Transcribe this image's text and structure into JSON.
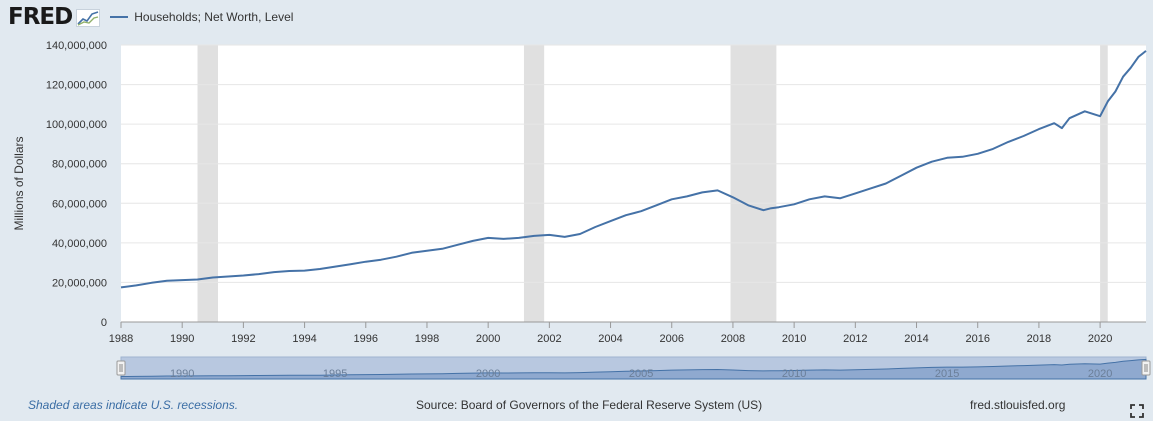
{
  "header": {
    "logo": "FRED",
    "logo_icon": "trend-graph-icon"
  },
  "footer": {
    "note": "Shaded areas indicate U.S. recessions.",
    "source": "Source: Board of Governors of the Federal Reserve System (US)",
    "site": "fred.stlouisfed.org",
    "fullscreen_icon": "fullscreen-icon"
  },
  "colors": {
    "series": "#4572a7",
    "recession": "#e0e0e0",
    "navigator_fill": "#b8c8e0",
    "background": "#e1e9f0"
  },
  "chart_data": {
    "type": "line",
    "ylabel": "Millions of Dollars",
    "xlabel": "",
    "xlim": [
      1988,
      2021.5
    ],
    "ylim": [
      0,
      140000000
    ],
    "x_ticks": [
      "1988",
      "1990",
      "1992",
      "1994",
      "1996",
      "1998",
      "2000",
      "2002",
      "2004",
      "2006",
      "2008",
      "2010",
      "2012",
      "2014",
      "2016",
      "2018",
      "2020"
    ],
    "y_ticks": [
      "0",
      "20,000,000",
      "40,000,000",
      "60,000,000",
      "80,000,000",
      "100,000,000",
      "120,000,000",
      "140,000,000"
    ],
    "grid": true,
    "legend": "top-left",
    "recessions": [
      [
        1990.5,
        1991.17
      ],
      [
        2001.17,
        2001.83
      ],
      [
        2007.92,
        2009.42
      ],
      [
        2020.0,
        2020.25
      ]
    ],
    "navigator_ticks": [
      "1990",
      "1995",
      "2000",
      "2005",
      "2010",
      "2015",
      "2020"
    ],
    "series": [
      {
        "name": "Households; Net Worth, Level",
        "x": [
          1988,
          1988.5,
          1989,
          1989.5,
          1990,
          1990.5,
          1991,
          1991.5,
          1992,
          1992.5,
          1993,
          1993.5,
          1994,
          1994.5,
          1995,
          1995.5,
          1996,
          1996.5,
          1997,
          1997.5,
          1998,
          1998.5,
          1999,
          1999.5,
          2000,
          2000.5,
          2001,
          2001.5,
          2002,
          2002.5,
          2003,
          2003.5,
          2004,
          2004.5,
          2005,
          2005.5,
          2006,
          2006.5,
          2007,
          2007.5,
          2008,
          2008.5,
          2009,
          2009.25,
          2009.5,
          2010,
          2010.5,
          2011,
          2011.5,
          2012,
          2012.5,
          2013,
          2013.5,
          2014,
          2014.5,
          2015,
          2015.5,
          2016,
          2016.5,
          2017,
          2017.5,
          2018,
          2018.5,
          2018.75,
          2019,
          2019.5,
          2020,
          2020.25,
          2020.5,
          2020.75,
          2021,
          2021.25,
          2021.5
        ],
        "values": [
          17500000,
          18500000,
          19800000,
          20800000,
          21200000,
          21500000,
          22500000,
          23000000,
          23500000,
          24200000,
          25200000,
          25800000,
          26000000,
          26800000,
          28000000,
          29200000,
          30500000,
          31500000,
          33000000,
          35000000,
          36000000,
          37000000,
          39000000,
          41000000,
          42500000,
          42000000,
          42500000,
          43500000,
          44000000,
          43000000,
          44500000,
          48000000,
          51000000,
          54000000,
          56000000,
          59000000,
          62000000,
          63500000,
          65500000,
          66500000,
          63000000,
          59000000,
          56500000,
          57500000,
          58000000,
          59500000,
          62000000,
          63500000,
          62500000,
          65000000,
          67500000,
          70000000,
          74000000,
          78000000,
          81000000,
          83000000,
          83500000,
          85000000,
          87500000,
          91000000,
          94000000,
          97500000,
          100500000,
          98000000,
          103000000,
          106500000,
          104000000,
          111500000,
          116500000,
          124000000,
          128500000,
          134000000,
          137000000
        ]
      }
    ]
  }
}
